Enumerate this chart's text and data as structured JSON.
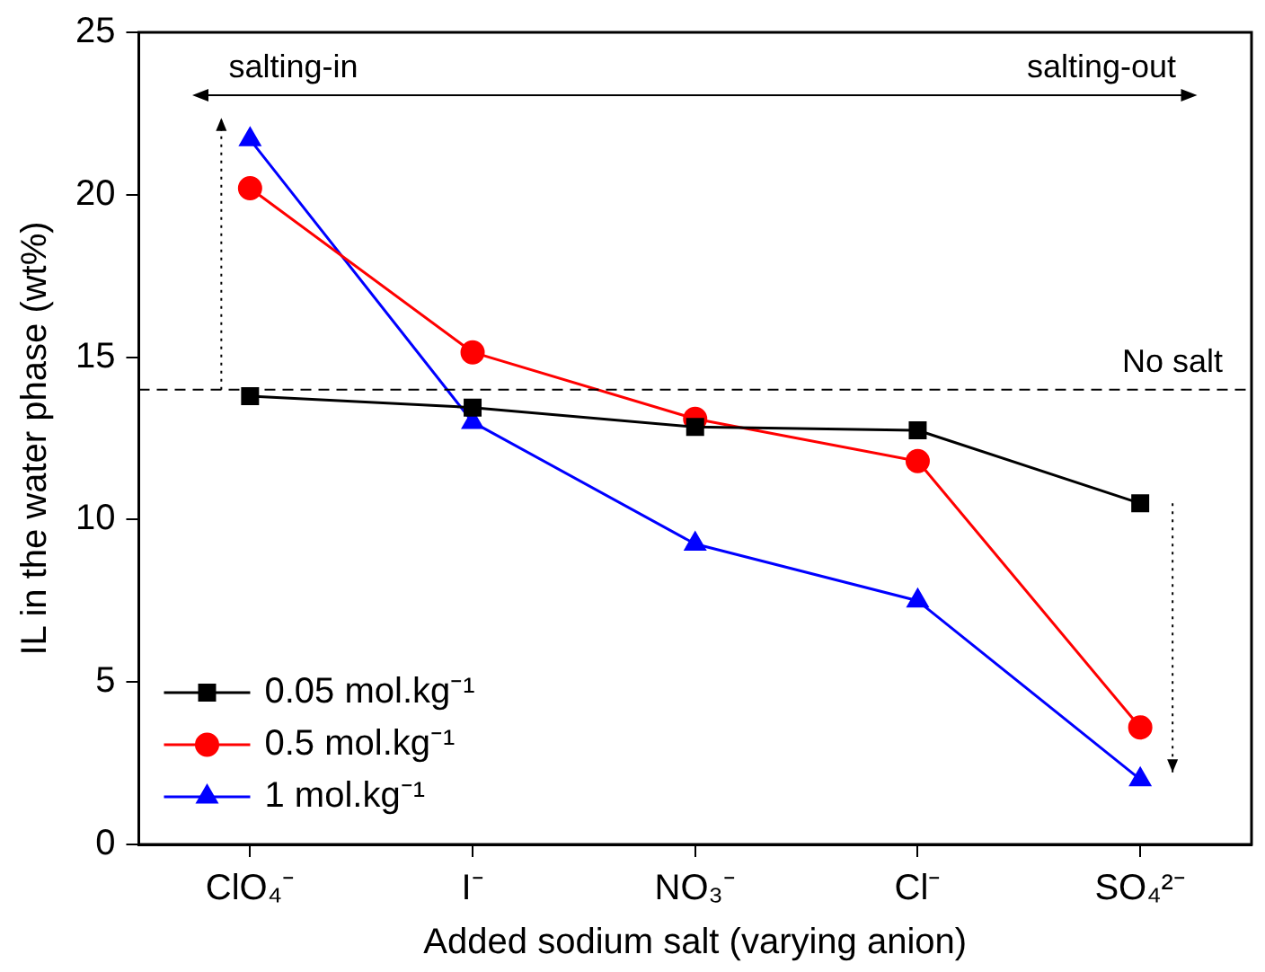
{
  "chart_data": {
    "type": "line",
    "xlabel": "Added sodium salt (varying anion)",
    "ylabel": "IL in the water phase (wt%)",
    "categories": [
      "ClO₄⁻",
      "I⁻",
      "NO₃⁻",
      "Cl⁻",
      "SO₄²⁻"
    ],
    "series": [
      {
        "name": "0.05 mol.kg⁻¹",
        "color": "#000000",
        "marker": "square",
        "values": [
          13.8,
          13.45,
          12.85,
          12.75,
          10.5
        ]
      },
      {
        "name": "0.5 mol.kg⁻¹",
        "color": "#ff0000",
        "marker": "circle",
        "values": [
          20.2,
          15.15,
          13.1,
          11.8,
          3.6
        ]
      },
      {
        "name": "1 mol.kg⁻¹",
        "color": "#0000ff",
        "marker": "triangle",
        "values": [
          21.7,
          13.0,
          9.25,
          7.5,
          2.0
        ]
      }
    ],
    "ylim": [
      0,
      25
    ],
    "yticks": [
      0,
      5,
      10,
      15,
      20,
      25
    ],
    "grid": false,
    "legend": "bottom left",
    "line_style": "solid",
    "ref_lines": [
      {
        "axis": "y",
        "value": 14,
        "label": "No salt",
        "color": "#000000",
        "line_style": "dashed"
      }
    ],
    "annotations": [
      "salting-in",
      "salting-out"
    ]
  }
}
